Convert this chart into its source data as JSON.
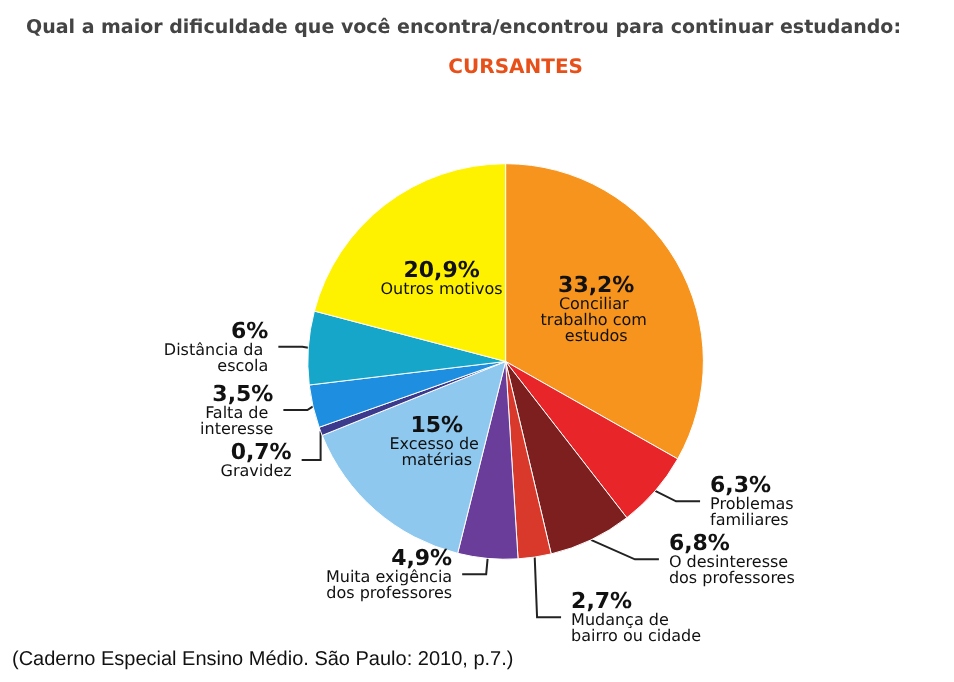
{
  "chart_data": {
    "type": "pie",
    "title": "Qual a maior dificuldade que você encontra/encontrou para continuar estudando:",
    "subtitle": "CURSANTES",
    "categories": [
      "Conciliar trabalho com estudos",
      "Problemas familiares",
      "O desinteresse dos professores",
      "Mudança de bairro ou cidade",
      "Muita exigência dos professores",
      "Excesso de matérias",
      "Gravidez",
      "Falta de interesse",
      "Distância da escola",
      "Outros motivos"
    ],
    "values": [
      33.2,
      6.3,
      6.8,
      2.7,
      4.9,
      15,
      0.7,
      3.5,
      6,
      20.9
    ],
    "value_labels": [
      "33,2%",
      "6,3%",
      "6,8%",
      "2,7%",
      "4,9%",
      "15%",
      "0,7%",
      "3,5%",
      "6%",
      "20,9%"
    ],
    "colors": [
      "#f7941d",
      "#e8262a",
      "#7d1f1f",
      "#d8392b",
      "#6b3d9a",
      "#8ec8ee",
      "#3c3a8c",
      "#1e8fe0",
      "#16a6c9",
      "#fff200"
    ],
    "annotations": [
      "(Caderno Especial Ensino Médio. São Paulo: 2010, p.7.)"
    ],
    "legend": false
  }
}
